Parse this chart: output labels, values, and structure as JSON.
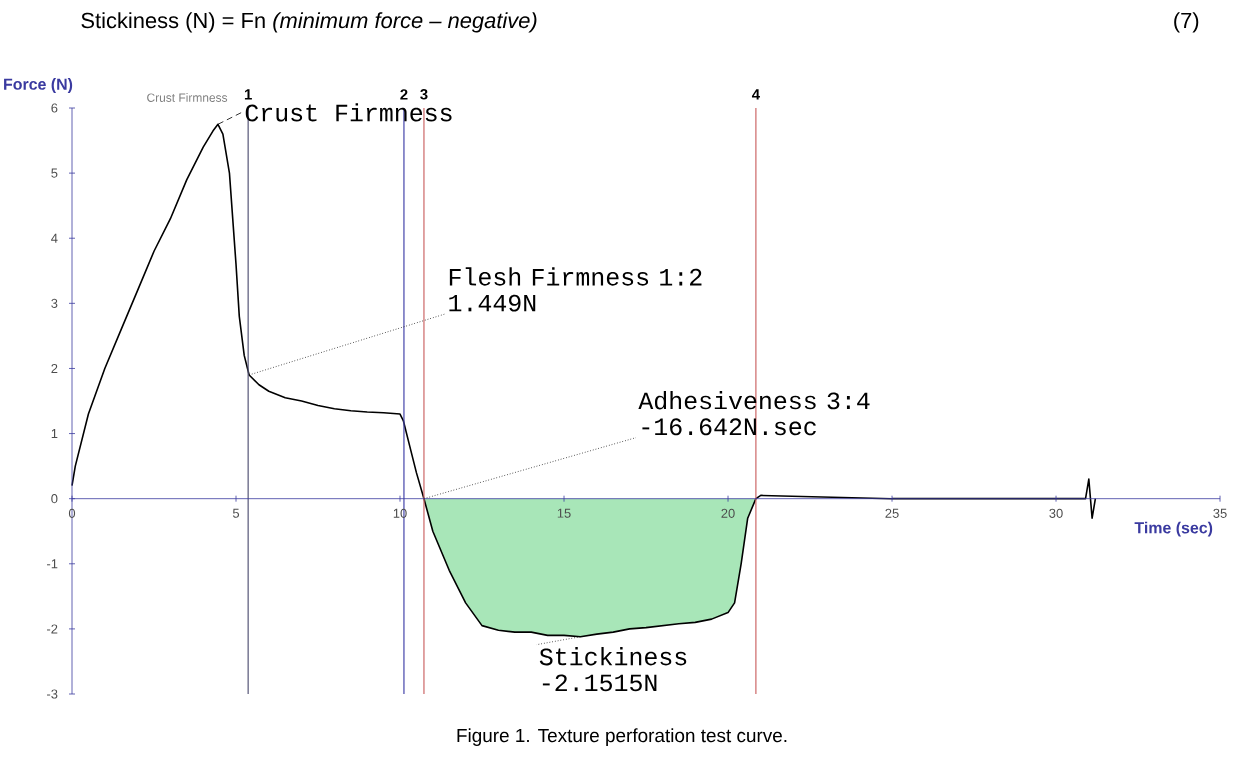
{
  "chart_data": {
    "type": "line",
    "xlabel": "Time (sec)",
    "ylabel": "Force (N)",
    "xlim": [
      0,
      35
    ],
    "ylim": [
      -3,
      6
    ],
    "xticks": [
      0,
      5,
      10,
      15,
      20,
      25,
      30,
      35
    ],
    "yticks": [
      -3,
      -2,
      -1,
      0,
      1,
      2,
      3,
      4,
      5,
      6
    ],
    "grid": false,
    "marker": "none",
    "line_style": "solid",
    "series": [
      {
        "type": "area",
        "color": "#a8e6b8",
        "x": [
          10.73,
          11,
          11.5,
          12,
          12.5,
          13,
          13.5,
          14,
          14.5,
          15,
          15.5,
          16,
          16.5,
          17,
          17.5,
          18,
          18.5,
          19,
          19.5,
          20,
          20.2,
          20.4,
          20.6,
          20.85
        ],
        "values": [
          0,
          -0.5,
          -1.1,
          -1.6,
          -1.95,
          -2.02,
          -2.05,
          -2.05,
          -2.1,
          -2.1,
          -2.12,
          -2.08,
          -2.05,
          -2.0,
          -1.98,
          -1.95,
          -1.92,
          -1.9,
          -1.85,
          -1.75,
          -1.6,
          -1.0,
          -0.3,
          0
        ]
      },
      {
        "type": "line",
        "color": "#000000",
        "x": [
          0,
          0.1,
          0.5,
          1,
          1.5,
          2,
          2.5,
          3,
          3.5,
          4,
          4.3,
          4.45,
          4.6,
          4.8,
          5.0,
          5.1,
          5.25,
          5.4,
          5.7,
          6,
          6.5,
          7,
          7.5,
          8,
          8.5,
          9,
          9.5,
          10,
          10.1,
          10.3,
          10.5,
          10.73,
          11,
          11.5,
          12,
          12.5,
          13,
          13.5,
          14,
          14.5,
          15,
          15.5,
          16,
          16.5,
          17,
          17.5,
          18,
          18.5,
          19,
          19.5,
          20,
          20.2,
          20.4,
          20.6,
          20.85,
          21,
          25,
          30,
          30.9,
          31.0,
          31.1,
          31.2
        ],
        "values": [
          0.2,
          0.5,
          1.3,
          2.0,
          2.6,
          3.2,
          3.8,
          4.3,
          4.9,
          5.4,
          5.65,
          5.75,
          5.6,
          5.0,
          3.6,
          2.8,
          2.2,
          1.9,
          1.75,
          1.65,
          1.55,
          1.5,
          1.43,
          1.38,
          1.35,
          1.33,
          1.32,
          1.3,
          1.2,
          0.8,
          0.4,
          0,
          -0.5,
          -1.1,
          -1.6,
          -1.95,
          -2.02,
          -2.05,
          -2.05,
          -2.1,
          -2.1,
          -2.12,
          -2.08,
          -2.05,
          -2.0,
          -1.98,
          -1.95,
          -1.92,
          -1.9,
          -1.85,
          -1.75,
          -1.6,
          -1.0,
          -0.3,
          0,
          0.05,
          0,
          0,
          0,
          0.3,
          -0.3,
          0
        ]
      }
    ],
    "ref_lines": [
      {
        "axis": "x",
        "value": 5.37,
        "color": "#555577"
      },
      {
        "axis": "x",
        "value": 10.12,
        "color": "#4444aa"
      },
      {
        "axis": "x",
        "value": 10.73,
        "color": "#cc6666"
      },
      {
        "axis": "x",
        "value": 20.85,
        "color": "#cc6666"
      }
    ],
    "annotations": [
      "Stickiness (N) = Fn *(minimum force – negative)*",
      "(7)",
      "Figure 1. Texture perforation test curve.",
      {
        "text": "Crust Firmness",
        "x": 4.45,
        "y": 5.75
      },
      {
        "text": "Crust Firmness",
        "x": 4.45,
        "y": 5.75
      },
      {
        "text": "Flesh Firmness 1:2 1.449N",
        "x": 5.4,
        "y": 1.9
      },
      {
        "text": "Adhesiveness 3:4 -16.642N.sec",
        "x": 10.73,
        "y": 0
      },
      {
        "text": "Stickiness -2.1515N",
        "x": 15.5,
        "y": -2.12
      },
      {
        "text": "1",
        "x": 5.37,
        "y": 6
      },
      {
        "text": "2",
        "x": 10.12,
        "y": 6
      },
      {
        "text": "3",
        "x": 10.73,
        "y": 6
      },
      {
        "text": "4",
        "x": 20.85,
        "y": 6
      }
    ]
  }
}
